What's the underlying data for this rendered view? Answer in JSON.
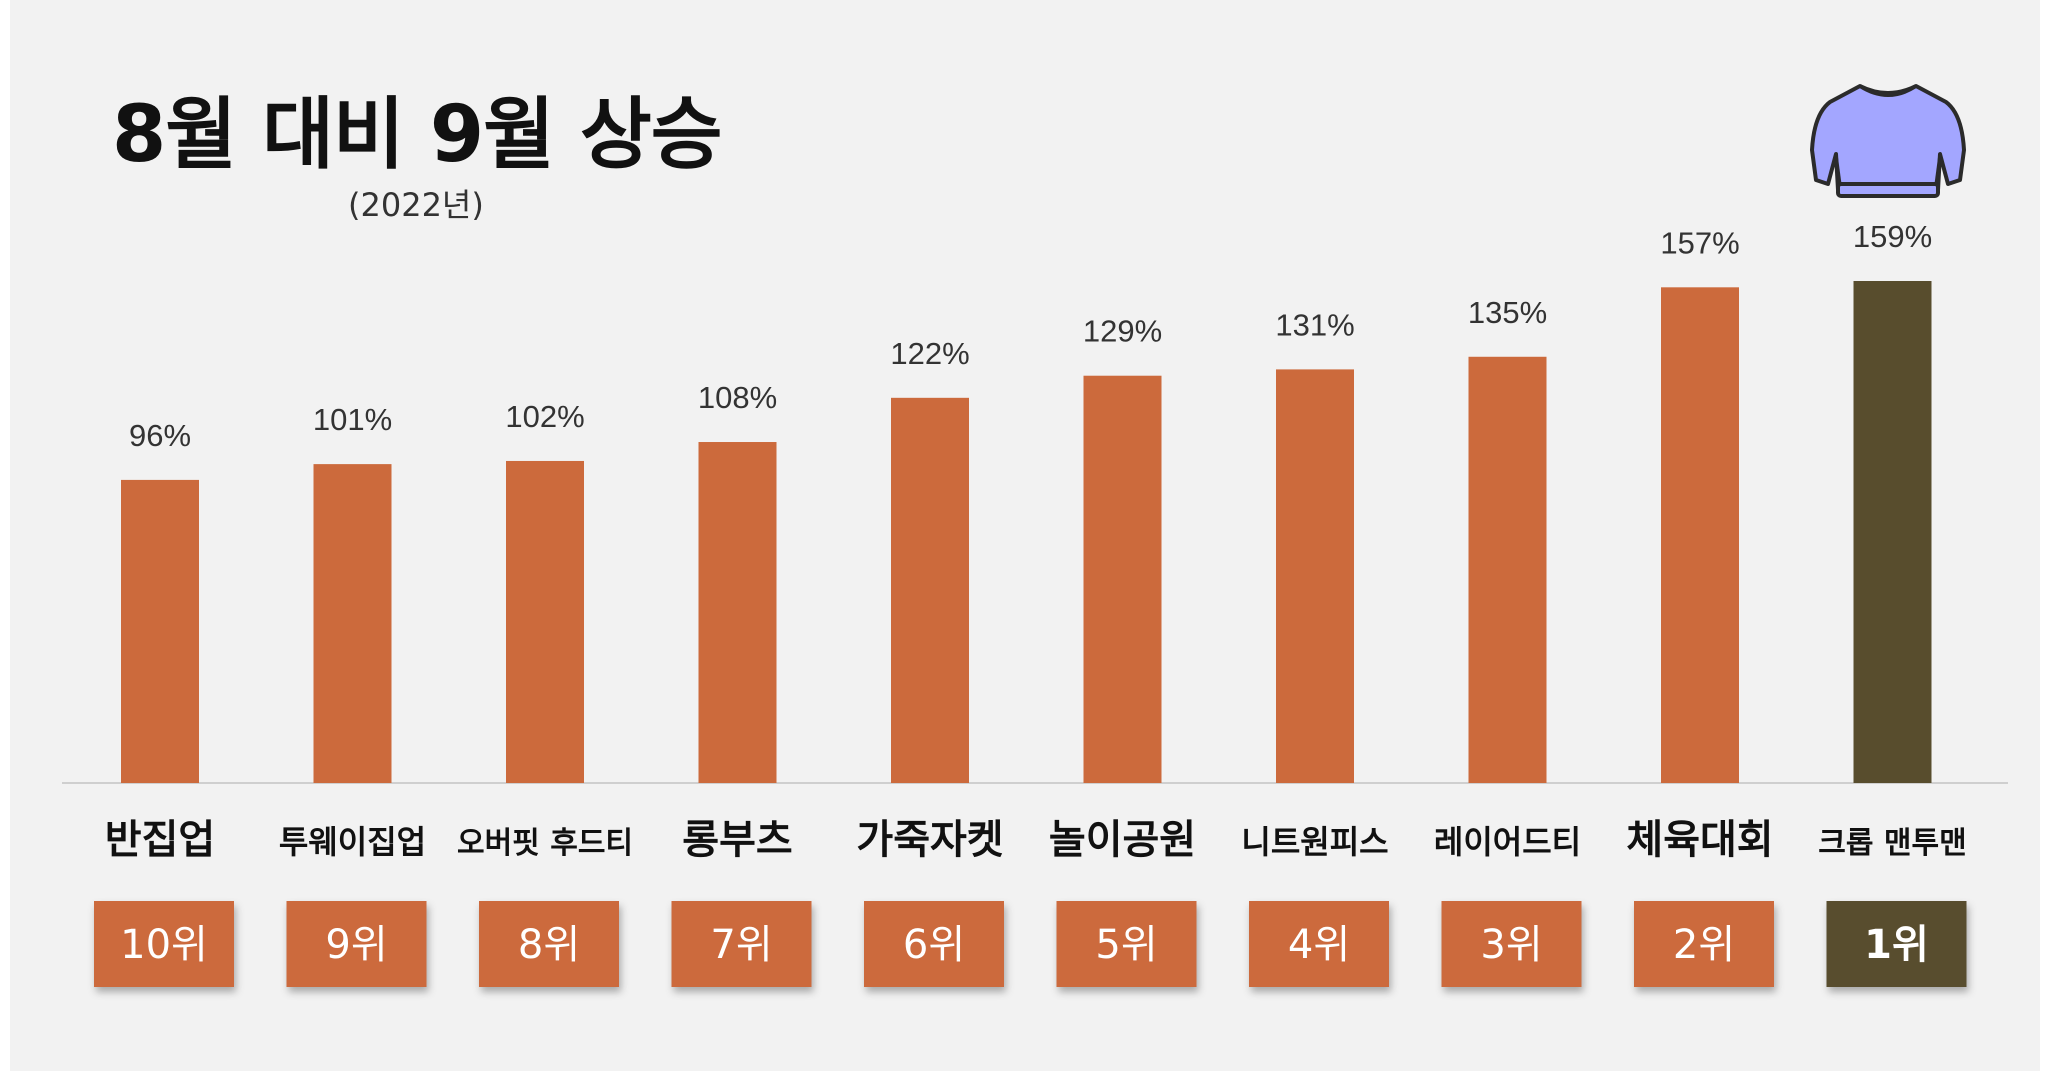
{
  "title": "8월 대비 9월 상승",
  "subtitle": "(2022년)",
  "icon": "sweater-icon",
  "colors": {
    "bar": "#cc6a3c",
    "highlight": "#584d2d",
    "background": "#f2f2f2"
  },
  "chart_data": {
    "type": "bar",
    "title": "8월 대비 9월 상승",
    "subtitle": "(2022년)",
    "categories": [
      "반집업",
      "투웨이집업",
      "오버핏 후드티",
      "롱부츠",
      "가죽자켓",
      "놀이공원",
      "니트원피스",
      "레이어드티",
      "체육대회",
      "크롭 맨투맨"
    ],
    "values": [
      96,
      101,
      102,
      108,
      122,
      129,
      131,
      135,
      157,
      159
    ],
    "value_labels": [
      "96%",
      "101%",
      "102%",
      "108%",
      "122%",
      "129%",
      "131%",
      "135%",
      "157%",
      "159%"
    ],
    "ranks": [
      "10위",
      "9위",
      "8위",
      "7위",
      "6위",
      "5위",
      "4위",
      "3위",
      "2위",
      "1위"
    ],
    "highlight_index": 9,
    "ylim": [
      0,
      159
    ],
    "grid": false,
    "legend": "none"
  }
}
